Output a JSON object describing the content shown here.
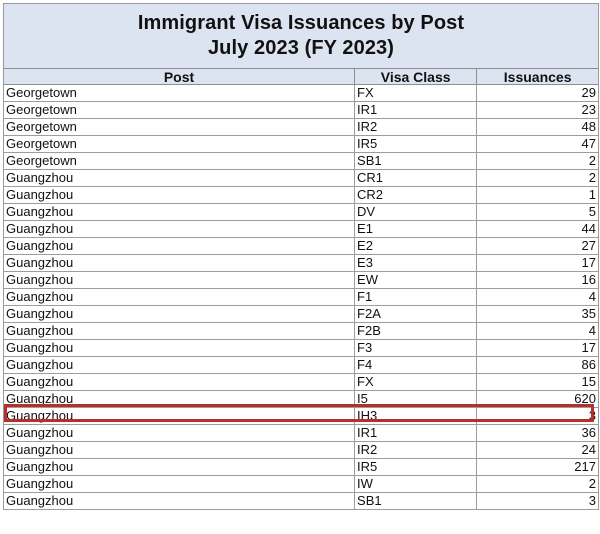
{
  "title": {
    "line1": "Immigrant Visa Issuances by Post",
    "line2": "July 2023 (FY 2023)"
  },
  "columns": {
    "post": "Post",
    "visa_class": "Visa Class",
    "issuances": "Issuances"
  },
  "rows": [
    {
      "post": "Georgetown",
      "visa_class": "FX",
      "issuances": "29"
    },
    {
      "post": "Georgetown",
      "visa_class": "IR1",
      "issuances": "23"
    },
    {
      "post": "Georgetown",
      "visa_class": "IR2",
      "issuances": "48"
    },
    {
      "post": "Georgetown",
      "visa_class": "IR5",
      "issuances": "47"
    },
    {
      "post": "Georgetown",
      "visa_class": "SB1",
      "issuances": "2"
    },
    {
      "post": "Guangzhou",
      "visa_class": "CR1",
      "issuances": "2"
    },
    {
      "post": "Guangzhou",
      "visa_class": "CR2",
      "issuances": "1"
    },
    {
      "post": "Guangzhou",
      "visa_class": "DV",
      "issuances": "5"
    },
    {
      "post": "Guangzhou",
      "visa_class": "E1",
      "issuances": "44"
    },
    {
      "post": "Guangzhou",
      "visa_class": "E2",
      "issuances": "27"
    },
    {
      "post": "Guangzhou",
      "visa_class": "E3",
      "issuances": "17"
    },
    {
      "post": "Guangzhou",
      "visa_class": "EW",
      "issuances": "16"
    },
    {
      "post": "Guangzhou",
      "visa_class": "F1",
      "issuances": "4"
    },
    {
      "post": "Guangzhou",
      "visa_class": "F2A",
      "issuances": "35"
    },
    {
      "post": "Guangzhou",
      "visa_class": "F2B",
      "issuances": "4"
    },
    {
      "post": "Guangzhou",
      "visa_class": "F3",
      "issuances": "17"
    },
    {
      "post": "Guangzhou",
      "visa_class": "F4",
      "issuances": "86"
    },
    {
      "post": "Guangzhou",
      "visa_class": "FX",
      "issuances": "15"
    },
    {
      "post": "Guangzhou",
      "visa_class": "I5",
      "issuances": "620"
    },
    {
      "post": "Guangzhou",
      "visa_class": "IH3",
      "issuances": "3"
    },
    {
      "post": "Guangzhou",
      "visa_class": "IR1",
      "issuances": "36"
    },
    {
      "post": "Guangzhou",
      "visa_class": "IR2",
      "issuances": "24"
    },
    {
      "post": "Guangzhou",
      "visa_class": "IR5",
      "issuances": "217"
    },
    {
      "post": "Guangzhou",
      "visa_class": "IW",
      "issuances": "2"
    },
    {
      "post": "Guangzhou",
      "visa_class": "SB1",
      "issuances": "3"
    }
  ],
  "highlighted_row": 18,
  "colors": {
    "header_fill": "#dde4f1",
    "highlight": "#b5302d",
    "grid": "#9d9d9d"
  }
}
